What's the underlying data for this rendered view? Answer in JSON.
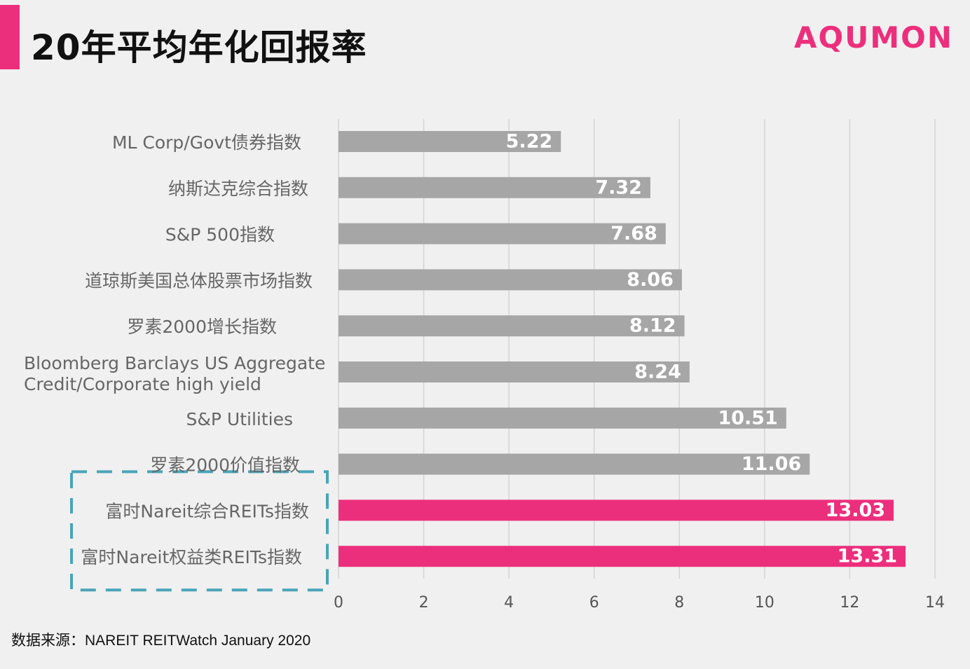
{
  "header": {
    "title": "20年平均年化回报率",
    "logo": "AQUMON"
  },
  "footer": {
    "source": "数据来源：NAREIT REITWatch January 2020"
  },
  "colors": {
    "accent": "#ec2f7c",
    "default_bar": "#a6a6a6",
    "highlight_box": "#4aa4b8",
    "grid": "#d4d4d4",
    "label_text": "#666666",
    "tick_text": "#555555"
  },
  "chart_data": {
    "type": "bar",
    "orientation": "horizontal",
    "title": "20年平均年化回报率",
    "xlabel": "",
    "ylabel": "",
    "xlim": [
      0,
      14
    ],
    "xticks": [
      0,
      2,
      4,
      6,
      8,
      10,
      12,
      14
    ],
    "grid": true,
    "categories": [
      "ML Corp/Govt债券指数",
      "纳斯达克综合指数",
      "S&P 500指数",
      "道琼斯美国总体股票市场指数",
      "罗素2000增长指数",
      "Bloomberg Barclays US Aggregate Credit/Corporate high yield",
      "S&P Utilities",
      "罗素2000价值指数",
      "富时Nareit综合REITs指数",
      "富时Nareit权益类REITs指数"
    ],
    "values": [
      5.22,
      7.32,
      7.68,
      8.06,
      8.12,
      8.24,
      10.51,
      11.06,
      13.03,
      13.31
    ],
    "value_labels": [
      "5.22",
      "7.32",
      "7.68",
      "8.06",
      "8.12",
      "8.24",
      "10.51",
      "11.06",
      "13.03",
      "13.31"
    ],
    "highlighted": [
      false,
      false,
      false,
      false,
      false,
      false,
      false,
      false,
      true,
      true
    ]
  }
}
